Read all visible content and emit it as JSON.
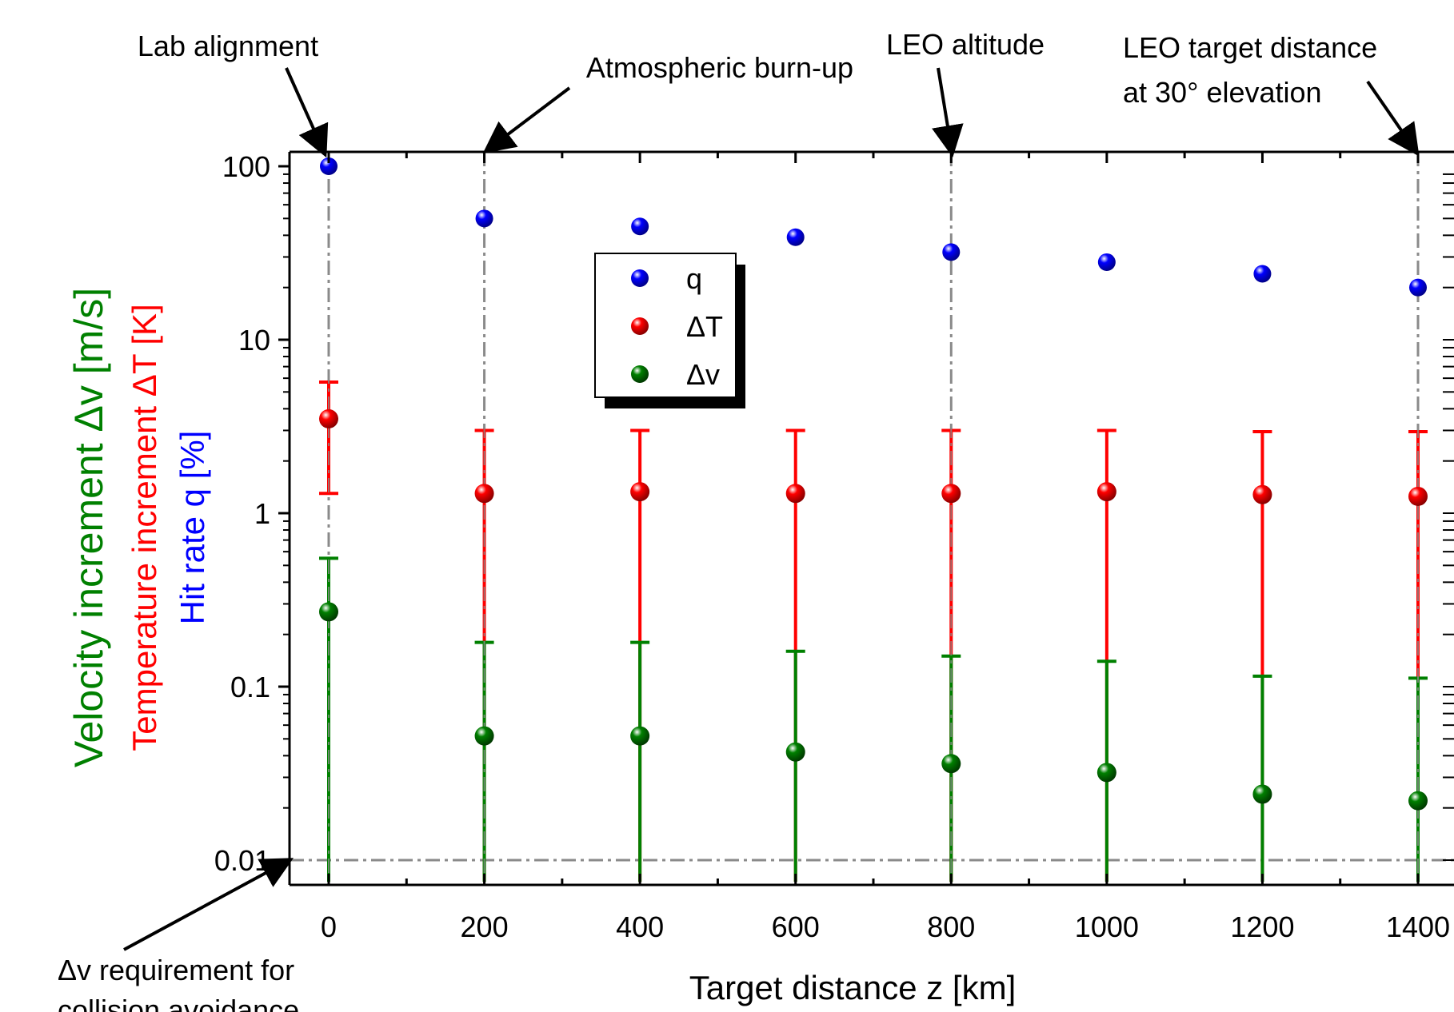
{
  "chart_data": {
    "type": "scatter",
    "xlabel": "Target distance z [km]",
    "ylabel_lines": [
      {
        "text": "Velocity increment Δv [m/s]",
        "color": "#008000"
      },
      {
        "text": "Temperature increment ΔT [K]",
        "color": "#ff0000"
      },
      {
        "text": "Hit rate q [%]",
        "color": "#0000ff"
      }
    ],
    "x_ticks": [
      0,
      200,
      400,
      600,
      800,
      1000,
      1200,
      1400
    ],
    "y_ticks": [
      {
        "value": 0.01,
        "label": "0.01"
      },
      {
        "value": 0.1,
        "label": "0.1"
      },
      {
        "value": 1,
        "label": "1"
      },
      {
        "value": 10,
        "label": "10"
      },
      {
        "value": 100,
        "label": "100"
      }
    ],
    "y_scale": "log",
    "xlim": [
      -50,
      1420
    ],
    "ylim": [
      0.0075,
      120
    ],
    "legend_position": "top-center",
    "series": [
      {
        "name": "q",
        "color": "#0000ff",
        "x": [
          0,
          200,
          400,
          600,
          800,
          1000,
          1200,
          1400
        ],
        "y": [
          100,
          50,
          45,
          39,
          32,
          28,
          24,
          20
        ]
      },
      {
        "name": "ΔT",
        "color": "#ff0000",
        "x": [
          0,
          200,
          400,
          600,
          800,
          1000,
          1200,
          1400
        ],
        "y": [
          3.5,
          1.3,
          1.33,
          1.3,
          1.3,
          1.33,
          1.28,
          1.25
        ],
        "err_low": [
          1.3,
          0.0075,
          0.0075,
          0.0075,
          0.0075,
          0.0075,
          0.0075,
          0.0075
        ],
        "err_high": [
          5.7,
          3.0,
          3.0,
          3.0,
          3.0,
          3.0,
          2.95,
          2.95
        ]
      },
      {
        "name": "Δv",
        "color": "#008000",
        "x": [
          0,
          200,
          400,
          600,
          800,
          1000,
          1200,
          1400
        ],
        "y": [
          0.27,
          0.052,
          0.052,
          0.042,
          0.036,
          0.032,
          0.024,
          0.022
        ],
        "err_low": [
          0.0075,
          0.0075,
          0.0075,
          0.0075,
          0.0075,
          0.0075,
          0.0075,
          0.0075
        ],
        "err_high": [
          0.55,
          0.18,
          0.18,
          0.16,
          0.15,
          0.14,
          0.115,
          0.112
        ]
      }
    ],
    "reference_lines": {
      "vertical_x": [
        0,
        200,
        800,
        1400
      ],
      "horizontal_y": 0.01,
      "color": "#8a8a8a"
    },
    "annotations": [
      {
        "lines": [
          "Lab alignment"
        ],
        "target_x": 0
      },
      {
        "lines": [
          "Atmospheric burn-up"
        ],
        "target_x": 200
      },
      {
        "lines": [
          "LEO altitude"
        ],
        "target_x": 800
      },
      {
        "lines": [
          "LEO target distance",
          "at 30° elevation"
        ],
        "target_x": 1400
      },
      {
        "lines": [
          "Δv requirement for",
          "collision avoidance"
        ],
        "target_y": 0.01
      }
    ]
  }
}
